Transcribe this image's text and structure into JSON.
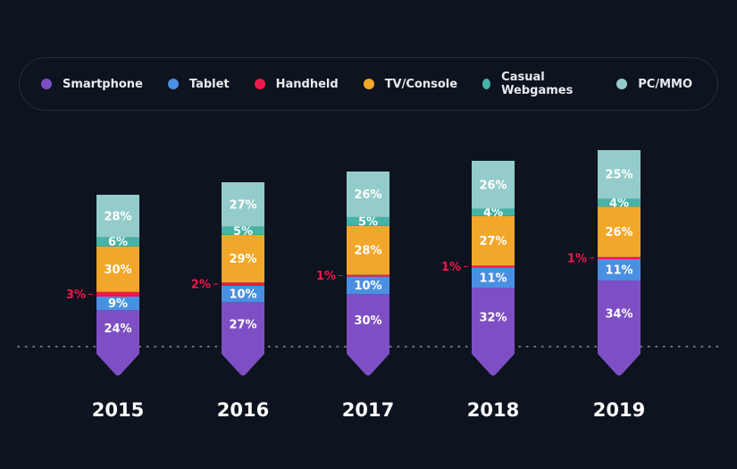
{
  "chart_data": {
    "type": "bar",
    "stacked": true,
    "categories": [
      "2015",
      "2016",
      "2017",
      "2018",
      "2019"
    ],
    "series": [
      {
        "name": "Smartphone",
        "color": "#7e4fc4",
        "values": [
          24,
          27,
          30,
          32,
          34
        ]
      },
      {
        "name": "Tablet",
        "color": "#4a90e2",
        "values": [
          9,
          10,
          10,
          11,
          11
        ]
      },
      {
        "name": "Handheld",
        "color": "#f0184a",
        "values": [
          3,
          2,
          1,
          1,
          1
        ]
      },
      {
        "name": "TV/Console",
        "color": "#f2a72a",
        "values": [
          30,
          29,
          28,
          27,
          26
        ]
      },
      {
        "name": "Casual Webgames",
        "color": "#45b3a6",
        "values": [
          6,
          5,
          5,
          4,
          4
        ]
      },
      {
        "name": "PC/MMO",
        "color": "#93cccb",
        "values": [
          28,
          27,
          26,
          26,
          25
        ]
      }
    ],
    "value_suffix": "%",
    "legend": "top",
    "background": "#0d131f"
  }
}
